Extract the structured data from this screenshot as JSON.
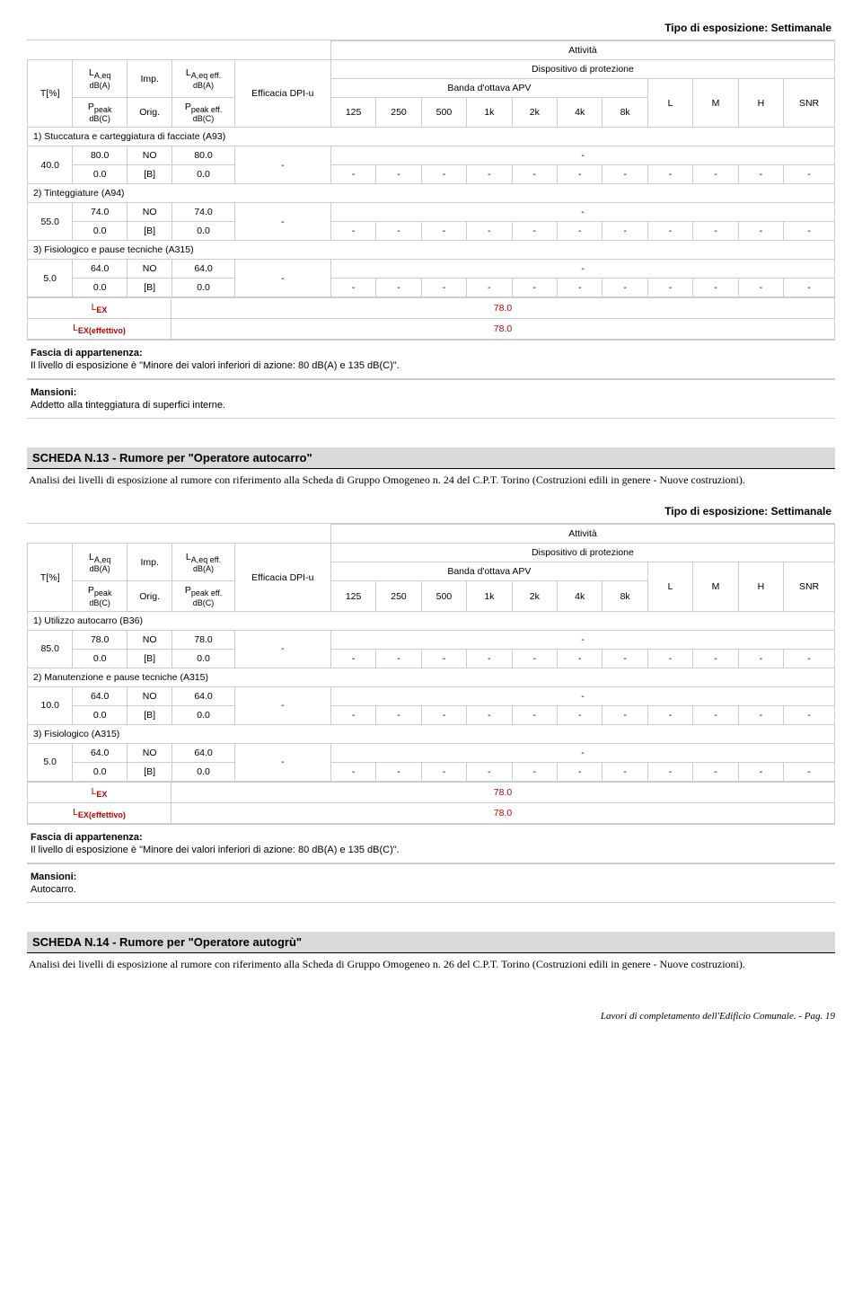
{
  "block1": {
    "expo_type": "Tipo di esposizione: Settimanale",
    "attivita": "Attività",
    "hdr": {
      "tpct": "T[%]",
      "laeq": "L",
      "laeq_sub": "A,eq",
      "dba": "dB(A)",
      "ppeak": "P",
      "ppeak_sub": "peak",
      "dbc": "dB(C)",
      "imp": "Imp.",
      "orig": "Orig.",
      "laeqeff": "L",
      "laeqeff_sub": "A,eq eff.",
      "ppeakeff": "P",
      "ppeakeff_sub": "peak eff.",
      "eff_dpi": "Efficacia DPI-u",
      "disp": "Dispositivo di protezione",
      "banda": "Banda d'ottava APV",
      "b125": "125",
      "b250": "250",
      "b500": "500",
      "b1k": "1k",
      "b2k": "2k",
      "b4k": "4k",
      "b8k": "8k",
      "L": "L",
      "M": "M",
      "H": "H",
      "SNR": "SNR"
    },
    "rows": [
      {
        "section": "1)  Stuccatura e carteggiatura di facciate (A93)"
      },
      {
        "t": "40.0",
        "a1": "80.0",
        "a2": "NO",
        "a3": "80.0",
        "dash": "-",
        "b1": "0.0",
        "b2": "[B]",
        "b3": "0.0"
      },
      {
        "section": "2)  Tinteggiature (A94)"
      },
      {
        "t": "55.0",
        "a1": "74.0",
        "a2": "NO",
        "a3": "74.0",
        "dash": "-",
        "b1": "0.0",
        "b2": "[B]",
        "b3": "0.0"
      },
      {
        "section": "3)  Fisiologico e pause tecniche (A315)"
      },
      {
        "t": "5.0",
        "a1": "64.0",
        "a2": "NO",
        "a3": "64.0",
        "dash": "-",
        "b1": "0.0",
        "b2": "[B]",
        "b3": "0.0"
      }
    ],
    "lex_label": "L",
    "lex_sub": "EX",
    "lex_val": "78.0",
    "lexeff_label": "L",
    "lexeff_sub": "EX(effettivo)",
    "lexeff_val": "78.0",
    "fascia_title": "Fascia di appartenenza:",
    "fascia_text": "Il livello di esposizione è \"Minore dei valori inferiori di azione: 80 dB(A) e 135 dB(C)\".",
    "mansioni_title": "Mansioni:",
    "mansioni_text": "Addetto alla tinteggiatura di superfici interne."
  },
  "scheda13": {
    "title": "SCHEDA N.13 - Rumore per \"Operatore autocarro\"",
    "desc": "Analisi dei livelli di esposizione al rumore con riferimento alla Scheda di Gruppo Omogeneo n. 24 del C.P.T. Torino (Costruzioni edili in genere - Nuove costruzioni)."
  },
  "block2": {
    "rows": [
      {
        "section": "1)  Utilizzo autocarro (B36)"
      },
      {
        "t": "85.0",
        "a1": "78.0",
        "a2": "NO",
        "a3": "78.0",
        "dash": "-",
        "b1": "0.0",
        "b2": "[B]",
        "b3": "0.0"
      },
      {
        "section": "2)  Manutenzione e pause tecniche (A315)"
      },
      {
        "t": "10.0",
        "a1": "64.0",
        "a2": "NO",
        "a3": "64.0",
        "dash": "-",
        "b1": "0.0",
        "b2": "[B]",
        "b3": "0.0"
      },
      {
        "section": "3)  Fisiologico (A315)"
      },
      {
        "t": "5.0",
        "a1": "64.0",
        "a2": "NO",
        "a3": "64.0",
        "dash": "-",
        "b1": "0.0",
        "b2": "[B]",
        "b3": "0.0"
      }
    ],
    "mansioni_text": "Autocarro."
  },
  "scheda14": {
    "title": "SCHEDA N.14 - Rumore per \"Operatore autogrù\"",
    "desc": "Analisi dei livelli di esposizione al rumore con riferimento alla Scheda di Gruppo Omogeneo n. 26 del C.P.T. Torino (Costruzioni edili in genere - Nuove costruzioni)."
  },
  "footer": "Lavori di completamento dell'Edificio Comunale. - Pag. 19"
}
